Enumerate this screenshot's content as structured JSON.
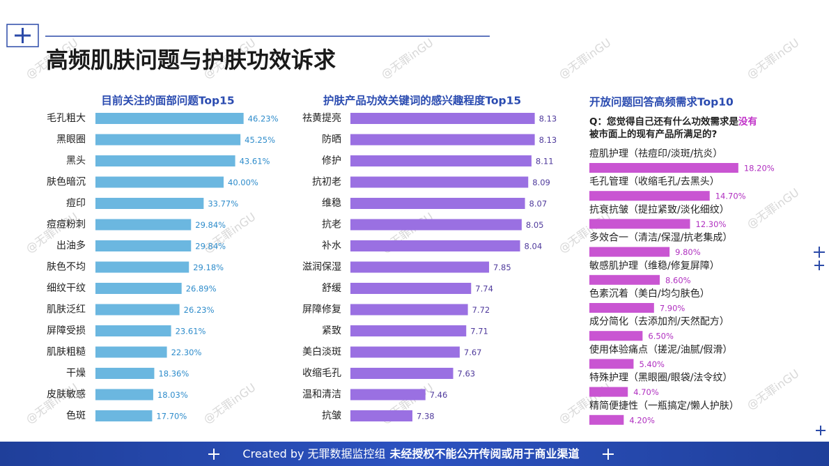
{
  "header": {
    "title": "高频肌肤问题与护肤功效诉求"
  },
  "watermark": "@无罪inGU",
  "question": {
    "parts": [
      "Q：您觉得自己还有什么功效需求是",
      "没有",
      "被市面上的现有产品所满足的?"
    ]
  },
  "footer": {
    "parts": [
      "Created by 无罪数据监控组",
      "未经授权不能公开传阅或用于商业渠道"
    ]
  },
  "chart_data": [
    {
      "type": "hbar",
      "title": "目前关注的面部问题Top15",
      "color": "#6bb7e0",
      "label_color": "#2e8ccb",
      "categories": [
        "毛孔粗大",
        "黑眼圈",
        "黑头",
        "肤色暗沉",
        "痘印",
        "痘痘粉刺",
        "出油多",
        "肤色不均",
        "细纹干纹",
        "肌肤泛红",
        "屏障受损",
        "肌肤粗糙",
        "干燥",
        "皮肤敏感",
        "色斑"
      ],
      "values": [
        46.23,
        45.25,
        43.61,
        40.0,
        33.77,
        29.84,
        29.84,
        29.18,
        26.89,
        26.23,
        23.61,
        22.3,
        18.36,
        18.03,
        17.7
      ],
      "value_labels": [
        "46.23%",
        "45.25%",
        "43.61%",
        "40.00%",
        "33.77%",
        "29.84%",
        "29.84%",
        "29.18%",
        "26.89%",
        "26.23%",
        "23.61%",
        "22.30%",
        "18.36%",
        "18.03%",
        "17.70%"
      ],
      "xlim": [
        0,
        50
      ]
    },
    {
      "type": "hbar",
      "title": "护肤产品功效关键词的感兴趣程度Top15",
      "color": "#9a70e2",
      "label_color": "#4f3a9c",
      "categories": [
        "祛黄提亮",
        "防晒",
        "修护",
        "抗初老",
        "维稳",
        "抗老",
        "补水",
        "滋润保湿",
        "舒缓",
        "屏障修复",
        "紧致",
        "美白淡斑",
        "收缩毛孔",
        "温和清洁",
        "抗皱"
      ],
      "values": [
        8.13,
        8.13,
        8.11,
        8.09,
        8.07,
        8.05,
        8.04,
        7.85,
        7.74,
        7.72,
        7.71,
        7.67,
        7.63,
        7.46,
        7.38
      ],
      "xlim": [
        7,
        8.2
      ]
    },
    {
      "type": "hbar-stacked-label",
      "title": "开放问题回答高频需求Top10",
      "color": "#c955d2",
      "label_color": "#b02fc0",
      "categories": [
        "痘肌护理（祛痘印/淡斑/抗炎）",
        "毛孔管理（收缩毛孔/去黑头）",
        "抗衰抗皱（提拉紧致/淡化细纹）",
        "多效合一（清洁/保湿/抗老集成）",
        "敏感肌护理（维稳/修复屏障）",
        "色素沉着（美白/均匀肤色）",
        "成分简化（去添加剂/天然配方）",
        "使用体验痛点（搓泥/油腻/假滑）",
        "特殊护理（黑眼圈/眼袋/法令纹）",
        "精简便捷性（一瓶搞定/懒人护肤）"
      ],
      "values": [
        18.2,
        14.7,
        12.3,
        9.8,
        8.6,
        7.9,
        6.5,
        5.4,
        4.7,
        4.2
      ],
      "value_labels": [
        "18.20%",
        "14.70%",
        "12.30%",
        "9.80%",
        "8.60%",
        "7.90%",
        "6.50%",
        "5.40%",
        "4.70%",
        "4.20%"
      ],
      "xlim": [
        0,
        20
      ]
    }
  ]
}
